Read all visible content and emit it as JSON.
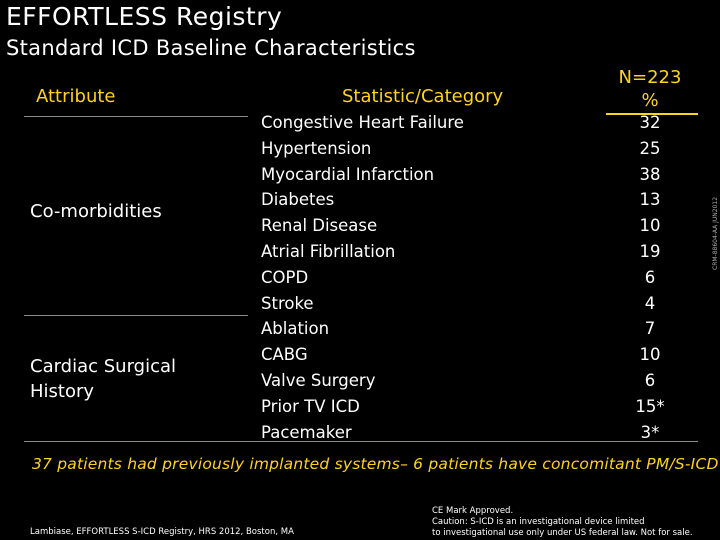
{
  "title": "EFFORTLESS Registry",
  "subtitle": "Standard ICD Baseline Characteristics",
  "table": {
    "headers": {
      "attribute": "Attribute",
      "statistic": "Statistic/Category",
      "n": "N=223",
      "unit": "%"
    },
    "groups": [
      {
        "label": "Co-morbidities"
      },
      {
        "label": "Cardiac Surgical History"
      }
    ],
    "rows": [
      {
        "category": "Congestive Heart Failure",
        "value": "32"
      },
      {
        "category": "Hypertension",
        "value": "25"
      },
      {
        "category": "Myocardial Infarction",
        "value": "38"
      },
      {
        "category": "Diabetes",
        "value": "13"
      },
      {
        "category": "Renal Disease",
        "value": "10"
      },
      {
        "category": "Atrial Fibrillation",
        "value": "19"
      },
      {
        "category": "COPD",
        "value": "6"
      },
      {
        "category": "Stroke",
        "value": "4"
      },
      {
        "category": "Ablation",
        "value": "7"
      },
      {
        "category": "CABG",
        "value": "10"
      },
      {
        "category": "Valve Surgery",
        "value": "6"
      },
      {
        "category": "Prior TV ICD",
        "value": "15*"
      },
      {
        "category": "Pacemaker",
        "value": "3*"
      }
    ]
  },
  "footnote": "37 patients had previously implanted systems– 6 patients have concomitant PM/S-ICD",
  "citation": "Lambiase, EFFORTLESS S-ICD Registry, HRS 2012, Boston, MA",
  "caution": {
    "line1": "CE Mark Approved.",
    "line2": "Caution: S-ICD is an investigational device limited",
    "line3": "to investigational use only under US federal law. Not for sale."
  },
  "side_code": "CRM-88604-AA JUN2012",
  "colors": {
    "background": "#000000",
    "text": "#ffffff",
    "accent": "#ffd21f",
    "rule": "#8a8a8a"
  }
}
